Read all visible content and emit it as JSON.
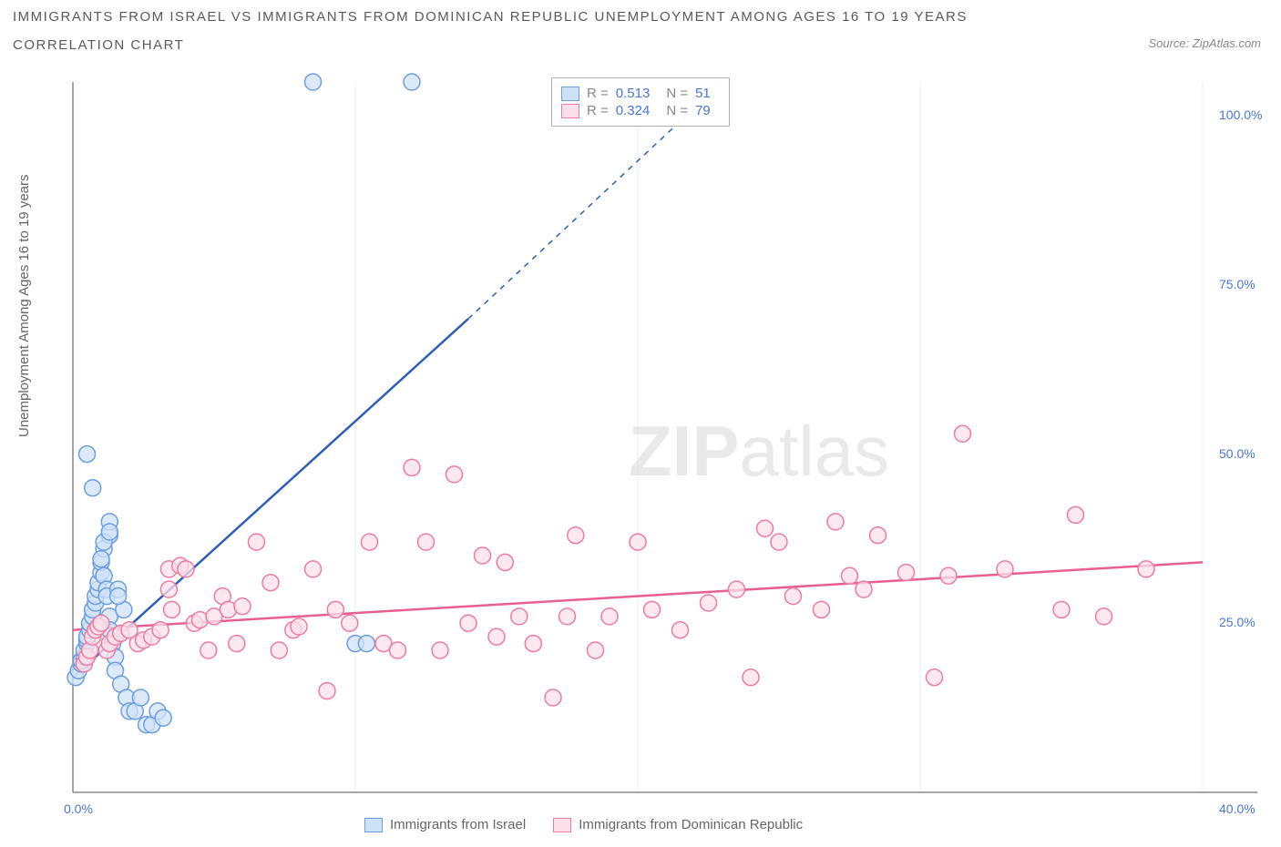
{
  "title_line1": "IMMIGRANTS FROM ISRAEL VS IMMIGRANTS FROM DOMINICAN REPUBLIC UNEMPLOYMENT AMONG AGES 16 TO 19 YEARS",
  "title_line2": "CORRELATION CHART",
  "source": "Source: ZipAtlas.com",
  "y_axis_label": "Unemployment Among Ages 16 to 19 years",
  "watermark_bold": "ZIP",
  "watermark_light": "atlas",
  "chart": {
    "type": "scatter",
    "xlim": [
      0,
      40
    ],
    "ylim": [
      0,
      105
    ],
    "x_ticks": [
      0,
      10,
      20,
      30,
      40
    ],
    "x_tick_labels": [
      "0.0%",
      "",
      "",
      "",
      "40.0%"
    ],
    "y_ticks": [
      25,
      50,
      75,
      100
    ],
    "y_tick_labels": [
      "25.0%",
      "50.0%",
      "75.0%",
      "100.0%"
    ],
    "grid_color": "#d3d3d3",
    "axis_color": "#888888",
    "background": "#ffffff",
    "series": [
      {
        "name": "Immigrants from Israel",
        "color_fill": "#cfe1f6",
        "color_stroke": "#6d9ee0",
        "line_color": "#2e5fb5",
        "marker_radius": 9,
        "marker_opacity": 0.75,
        "R": "0.513",
        "N": "51",
        "trend": {
          "x1": 0,
          "y1": 17,
          "x2_solid": 14,
          "y2_solid": 70,
          "x2_dash": 23,
          "y2_dash": 105
        },
        "points": [
          [
            0.1,
            17
          ],
          [
            0.2,
            18
          ],
          [
            0.3,
            19
          ],
          [
            0.3,
            19.5
          ],
          [
            0.4,
            20
          ],
          [
            0.4,
            21
          ],
          [
            0.5,
            22
          ],
          [
            0.5,
            22.5
          ],
          [
            0.5,
            23
          ],
          [
            0.6,
            24
          ],
          [
            0.6,
            25
          ],
          [
            0.7,
            26
          ],
          [
            0.7,
            27
          ],
          [
            0.8,
            28
          ],
          [
            0.8,
            29
          ],
          [
            0.9,
            30
          ],
          [
            0.9,
            31
          ],
          [
            1.0,
            32.5
          ],
          [
            1.0,
            34
          ],
          [
            1.1,
            36
          ],
          [
            1.1,
            32
          ],
          [
            1.2,
            30
          ],
          [
            1.2,
            29
          ],
          [
            1.3,
            26
          ],
          [
            1.3,
            24
          ],
          [
            1.4,
            22
          ],
          [
            1.5,
            20
          ],
          [
            1.5,
            18
          ],
          [
            1.7,
            16
          ],
          [
            1.9,
            14
          ],
          [
            2.0,
            12
          ],
          [
            2.2,
            12
          ],
          [
            2.4,
            14
          ],
          [
            2.6,
            10
          ],
          [
            2.8,
            10
          ],
          [
            3.0,
            12
          ],
          [
            3.2,
            11
          ],
          [
            1.3,
            38
          ],
          [
            1.6,
            30
          ],
          [
            1.8,
            27
          ],
          [
            0.7,
            45
          ],
          [
            0.5,
            50
          ],
          [
            1.3,
            40
          ],
          [
            1.0,
            34.5
          ],
          [
            1.1,
            37
          ],
          [
            1.3,
            38.5
          ],
          [
            10.0,
            22
          ],
          [
            10.4,
            22
          ],
          [
            8.5,
            105
          ],
          [
            12.0,
            105
          ],
          [
            1.6,
            29
          ]
        ]
      },
      {
        "name": "Immigrants from Dominican Republic",
        "color_fill": "#fbe0e8",
        "color_stroke": "#ed7ba3",
        "line_color": "#e85f91",
        "marker_radius": 9,
        "marker_opacity": 0.75,
        "R": "0.324",
        "N": "79",
        "trend": {
          "x1": 0,
          "y1": 24,
          "x2_solid": 40,
          "y2_solid": 34
        },
        "points": [
          [
            0.4,
            19
          ],
          [
            0.5,
            20
          ],
          [
            0.6,
            21
          ],
          [
            0.7,
            23
          ],
          [
            0.8,
            24
          ],
          [
            0.9,
            24.5
          ],
          [
            1.0,
            25
          ],
          [
            1.2,
            21
          ],
          [
            1.3,
            22
          ],
          [
            1.5,
            23
          ],
          [
            1.7,
            23.5
          ],
          [
            2.0,
            24
          ],
          [
            2.3,
            22
          ],
          [
            2.5,
            22.5
          ],
          [
            2.8,
            23
          ],
          [
            3.1,
            24
          ],
          [
            3.4,
            33
          ],
          [
            3.5,
            27
          ],
          [
            3.8,
            33.5
          ],
          [
            4.0,
            33
          ],
          [
            4.3,
            25
          ],
          [
            4.5,
            25.5
          ],
          [
            4.8,
            21
          ],
          [
            5.0,
            26
          ],
          [
            5.3,
            29
          ],
          [
            5.5,
            27
          ],
          [
            5.8,
            22
          ],
          [
            6.0,
            27.5
          ],
          [
            6.5,
            37
          ],
          [
            7.0,
            31
          ],
          [
            7.3,
            21
          ],
          [
            7.8,
            24
          ],
          [
            8.0,
            24.5
          ],
          [
            8.5,
            33
          ],
          [
            9.0,
            15
          ],
          [
            9.3,
            27
          ],
          [
            9.8,
            25
          ],
          [
            10.5,
            37
          ],
          [
            11.0,
            22
          ],
          [
            11.5,
            21
          ],
          [
            12.0,
            48
          ],
          [
            12.5,
            37
          ],
          [
            13.0,
            21
          ],
          [
            13.5,
            47
          ],
          [
            14.0,
            25
          ],
          [
            14.5,
            35
          ],
          [
            15.0,
            23
          ],
          [
            15.3,
            34
          ],
          [
            15.8,
            26
          ],
          [
            16.3,
            22
          ],
          [
            17.0,
            14
          ],
          [
            17.5,
            26
          ],
          [
            17.8,
            38
          ],
          [
            18.5,
            21
          ],
          [
            19.0,
            26
          ],
          [
            20.0,
            37
          ],
          [
            20.5,
            27
          ],
          [
            21.5,
            24
          ],
          [
            22.5,
            28
          ],
          [
            23.5,
            30
          ],
          [
            24.0,
            17
          ],
          [
            24.5,
            39
          ],
          [
            25.0,
            37
          ],
          [
            25.5,
            29
          ],
          [
            26.5,
            27
          ],
          [
            27.0,
            40
          ],
          [
            27.5,
            32
          ],
          [
            28.0,
            30
          ],
          [
            28.5,
            38
          ],
          [
            29.5,
            32.5
          ],
          [
            30.5,
            17
          ],
          [
            31.0,
            32
          ],
          [
            31.5,
            53
          ],
          [
            33.0,
            33
          ],
          [
            35.0,
            27
          ],
          [
            35.5,
            41
          ],
          [
            36.5,
            26
          ],
          [
            38.0,
            33
          ],
          [
            3.4,
            30
          ]
        ]
      }
    ]
  },
  "legend": {
    "items": [
      {
        "label": "Immigrants from Israel",
        "fill": "#cfe1f6",
        "stroke": "#6d9ee0"
      },
      {
        "label": "Immigrants from Dominican Republic",
        "fill": "#fbe0e8",
        "stroke": "#ed7ba3"
      }
    ]
  },
  "stats_box": {
    "rows": [
      {
        "fill": "#cfe1f6",
        "stroke": "#6d9ee0",
        "R": "0.513",
        "N": "51"
      },
      {
        "fill": "#fbe0e8",
        "stroke": "#ed7ba3",
        "R": "0.324",
        "N": "79"
      }
    ]
  }
}
